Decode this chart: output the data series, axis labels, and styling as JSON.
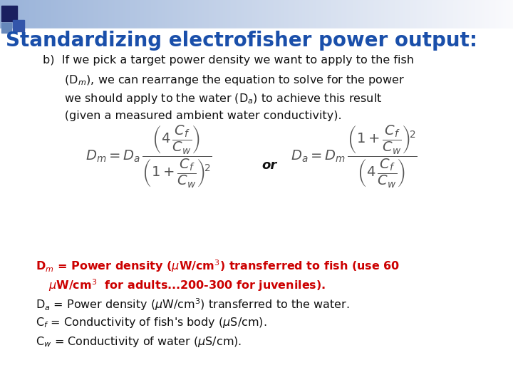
{
  "title": "Standardizing electrofisher power output:",
  "title_color": "#1a4faa",
  "title_fontsize": 20,
  "background_color": "#ffffff",
  "body_fontsize": 11.5,
  "body_color": "#111111",
  "eq_color": "#555555",
  "eq_fontsize": 14,
  "or_text": "or",
  "legend_fontsize": 11.5,
  "legend_color": "#111111",
  "legend_bold_color": "#cc0000",
  "header_bg": "#b8c8e0",
  "square1_color": "#1a2a6b",
  "square2_color": "#6677aa",
  "square3_color": "#3344aa"
}
